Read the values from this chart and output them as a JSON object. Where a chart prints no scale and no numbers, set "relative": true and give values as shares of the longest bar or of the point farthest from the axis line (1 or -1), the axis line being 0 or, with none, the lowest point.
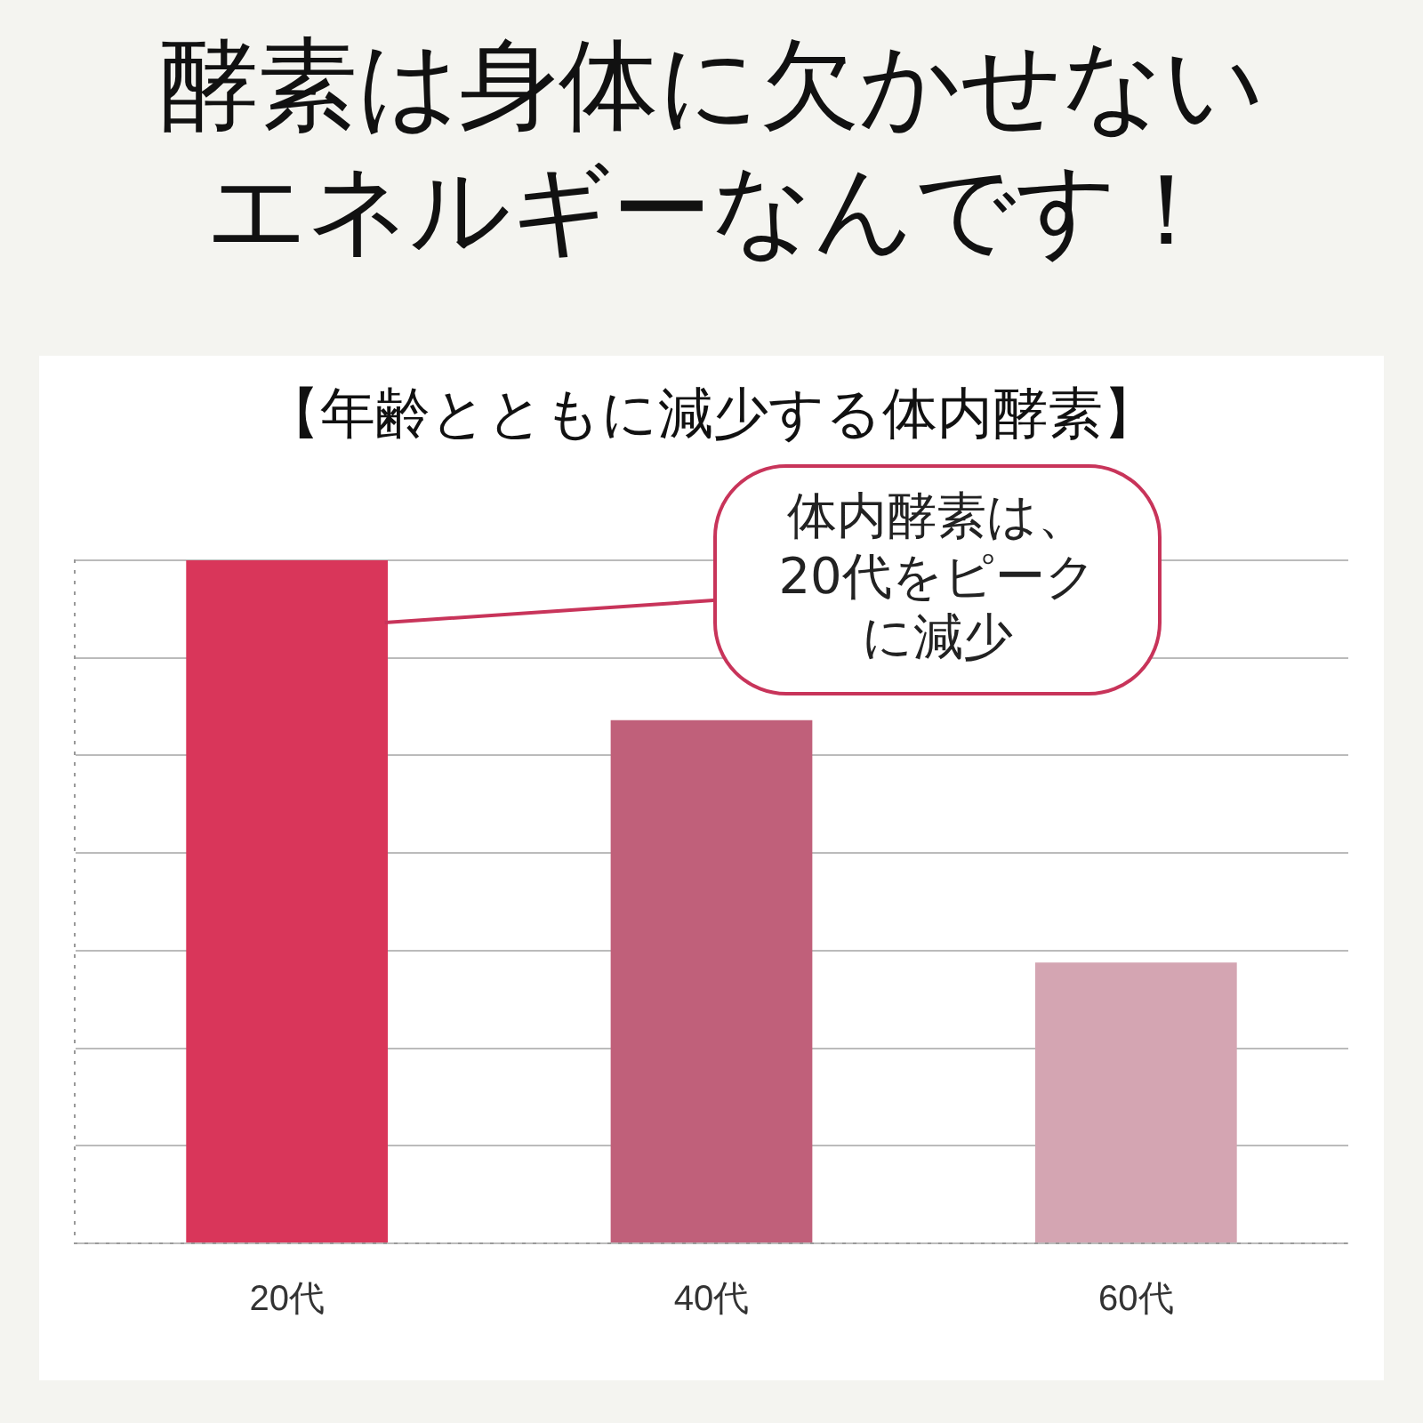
{
  "chart_data": {
    "type": "bar",
    "title": "酵素は身体に欠かせないエネルギーなんです！",
    "subtitle": "【年齢とともに減少する体内酵素】",
    "categories": [
      "20代",
      "40代",
      "60代"
    ],
    "values": [
      1,
      0.766,
      0.411
    ],
    "colors": [
      "#d9365a",
      "#c0607a",
      "#d4a5b2"
    ],
    "relative": true,
    "grid": "y",
    "annotations": [
      "体内酵素は、20代をピークに減少"
    ]
  }
}
